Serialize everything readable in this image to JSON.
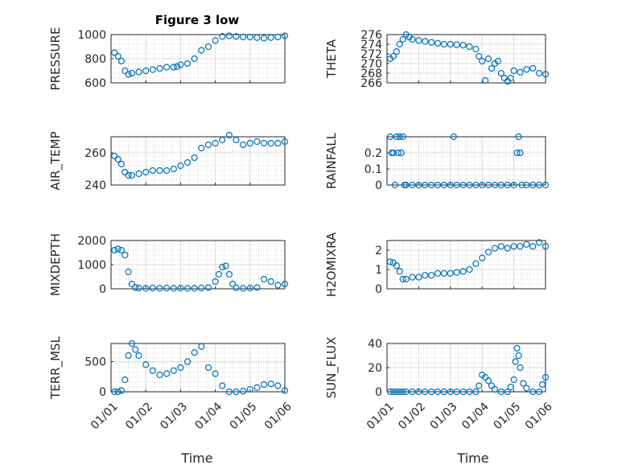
{
  "figure": {
    "title": "Figure 3 low",
    "xlabel": "Time"
  },
  "colors": {
    "marker": "#0072bd",
    "axes": "#262626"
  },
  "chart_data": [
    {
      "type": "scatter",
      "ylabel": "PRESSURE",
      "xlim": [
        0,
        5
      ],
      "ylim": [
        600,
        1000
      ],
      "yticks": [
        600,
        800,
        1000
      ],
      "xticks": [
        0,
        1,
        2,
        3,
        4,
        5
      ],
      "xticklabels": [
        "01/01",
        "01/02",
        "01/03",
        "01/04",
        "01/05",
        "01/06"
      ],
      "grid": true,
      "minor_grid": true,
      "x": [
        0.1,
        0.2,
        0.3,
        0.4,
        0.5,
        0.6,
        0.8,
        1.0,
        1.2,
        1.4,
        1.6,
        1.8,
        1.9,
        2.0,
        2.2,
        2.4,
        2.6,
        2.8,
        3.0,
        3.2,
        3.4,
        3.6,
        3.8,
        4.0,
        4.2,
        4.4,
        4.6,
        4.8,
        5.0
      ],
      "y": [
        850,
        820,
        780,
        700,
        670,
        680,
        690,
        700,
        710,
        720,
        730,
        730,
        735,
        750,
        760,
        800,
        870,
        900,
        950,
        985,
        990,
        985,
        980,
        980,
        975,
        970,
        975,
        980,
        990
      ]
    },
    {
      "type": "scatter",
      "ylabel": "THETA",
      "xlim": [
        0,
        5
      ],
      "ylim": [
        266,
        276
      ],
      "yticks": [
        266,
        268,
        270,
        272,
        274,
        276
      ],
      "xticks": [
        0,
        1,
        2,
        3,
        4,
        5
      ],
      "xticklabels": [
        "01/01",
        "01/02",
        "01/03",
        "01/04",
        "01/05",
        "01/06"
      ],
      "grid": true,
      "minor_grid": true,
      "x": [
        0.1,
        0.2,
        0.3,
        0.4,
        0.5,
        0.6,
        0.7,
        0.8,
        1.0,
        1.2,
        1.4,
        1.6,
        1.8,
        2.0,
        2.2,
        2.4,
        2.6,
        2.8,
        2.9,
        3.0,
        3.1,
        3.2,
        3.3,
        3.4,
        3.5,
        3.6,
        3.7,
        3.8,
        3.9,
        4.0,
        4.2,
        4.4,
        4.6,
        4.8,
        5.0
      ],
      "y": [
        271,
        271.5,
        272.5,
        274,
        275,
        276,
        275.5,
        275,
        274.8,
        274.6,
        274.4,
        274.2,
        274,
        274,
        273.9,
        273.8,
        273.5,
        273,
        271.5,
        270.5,
        266.5,
        271,
        269,
        270,
        270.5,
        268,
        267,
        266.3,
        267,
        268.5,
        268.2,
        268.8,
        269,
        268,
        267.8
      ]
    },
    {
      "type": "scatter",
      "ylabel": "AIR_TEMP",
      "xlim": [
        0,
        5
      ],
      "ylim": [
        240,
        270
      ],
      "yticks": [
        240,
        260
      ],
      "xticks": [
        0,
        1,
        2,
        3,
        4,
        5
      ],
      "xticklabels": [
        "01/01",
        "01/02",
        "01/03",
        "01/04",
        "01/05",
        "01/06"
      ],
      "grid": true,
      "minor_grid": true,
      "x": [
        0.1,
        0.2,
        0.3,
        0.4,
        0.5,
        0.6,
        0.8,
        1.0,
        1.2,
        1.4,
        1.6,
        1.8,
        2.0,
        2.2,
        2.4,
        2.6,
        2.8,
        3.0,
        3.2,
        3.4,
        3.6,
        3.8,
        4.0,
        4.2,
        4.4,
        4.6,
        4.8,
        5.0
      ],
      "y": [
        258,
        256,
        253,
        248,
        246,
        246,
        247,
        248,
        249,
        249,
        249,
        250,
        252,
        254,
        257,
        263,
        265,
        266,
        268,
        271,
        268,
        265,
        266,
        267,
        266,
        266,
        266,
        267
      ]
    },
    {
      "type": "scatter",
      "ylabel": "RAINFALL",
      "xlim": [
        0,
        5
      ],
      "ylim": [
        0,
        0.3
      ],
      "yticks": [
        0,
        0.1,
        0.2
      ],
      "xticks": [
        0,
        1,
        2,
        3,
        4,
        5
      ],
      "xticklabels": [
        "01/01",
        "01/02",
        "01/03",
        "01/04",
        "01/05",
        "01/06"
      ],
      "grid": true,
      "minor_grid": true,
      "x": [
        0.1,
        0.15,
        0.2,
        0.25,
        0.3,
        0.35,
        0.4,
        0.45,
        0.5,
        0.55,
        0.6,
        0.8,
        1.0,
        1.2,
        1.4,
        1.6,
        1.8,
        2.0,
        2.1,
        2.2,
        2.4,
        2.6,
        2.8,
        3.0,
        3.2,
        3.4,
        3.6,
        3.8,
        4.0,
        4.1,
        4.15,
        4.2,
        4.25,
        4.4,
        4.6,
        4.8,
        5.0
      ],
      "y": [
        0.3,
        0.2,
        0.2,
        0,
        0.3,
        0.2,
        0.3,
        0.2,
        0.3,
        0,
        0,
        0,
        0,
        0,
        0,
        0,
        0,
        0,
        0.3,
        0,
        0,
        0,
        0,
        0,
        0,
        0,
        0,
        0,
        0,
        0.2,
        0.3,
        0.2,
        0,
        0,
        0,
        0,
        0
      ]
    },
    {
      "type": "scatter",
      "ylabel": "MIXDEPTH",
      "xlim": [
        0,
        5
      ],
      "ylim": [
        0,
        2000
      ],
      "yticks": [
        0,
        1000,
        2000
      ],
      "xticks": [
        0,
        1,
        2,
        3,
        4,
        5
      ],
      "xticklabels": [
        "01/01",
        "01/02",
        "01/03",
        "01/04",
        "01/05",
        "01/06"
      ],
      "grid": true,
      "minor_grid": true,
      "x": [
        0.1,
        0.2,
        0.3,
        0.4,
        0.5,
        0.6,
        0.7,
        0.8,
        1.0,
        1.2,
        1.4,
        1.6,
        1.8,
        2.0,
        2.2,
        2.4,
        2.6,
        2.8,
        3.0,
        3.1,
        3.2,
        3.3,
        3.4,
        3.5,
        3.6,
        3.8,
        4.0,
        4.2,
        4.4,
        4.6,
        4.8,
        5.0
      ],
      "y": [
        1600,
        1650,
        1600,
        1400,
        700,
        200,
        50,
        30,
        20,
        30,
        20,
        30,
        20,
        30,
        20,
        20,
        30,
        50,
        300,
        600,
        900,
        950,
        600,
        200,
        40,
        20,
        30,
        50,
        400,
        300,
        150,
        200
      ]
    },
    {
      "type": "scatter",
      "ylabel": "H2OMIXRA",
      "xlim": [
        0,
        5
      ],
      "ylim": [
        0,
        2.5
      ],
      "yticks": [
        0,
        1,
        2
      ],
      "xticks": [
        0,
        1,
        2,
        3,
        4,
        5
      ],
      "xticklabels": [
        "01/01",
        "01/02",
        "01/03",
        "01/04",
        "01/05",
        "01/06"
      ],
      "grid": true,
      "minor_grid": true,
      "x": [
        0.1,
        0.2,
        0.3,
        0.4,
        0.5,
        0.6,
        0.8,
        1.0,
        1.2,
        1.4,
        1.6,
        1.8,
        2.0,
        2.2,
        2.4,
        2.6,
        2.8,
        3.0,
        3.2,
        3.4,
        3.6,
        3.8,
        4.0,
        4.2,
        4.4,
        4.6,
        4.8,
        5.0
      ],
      "y": [
        1.4,
        1.35,
        1.2,
        0.9,
        0.5,
        0.5,
        0.6,
        0.6,
        0.7,
        0.7,
        0.8,
        0.8,
        0.8,
        0.85,
        0.9,
        1.0,
        1.3,
        1.6,
        1.9,
        2.1,
        2.2,
        2.1,
        2.2,
        2.2,
        2.3,
        2.2,
        2.4,
        2.2
      ]
    },
    {
      "type": "scatter",
      "ylabel": "TERR_MSL",
      "xlim": [
        0,
        5
      ],
      "ylim": [
        0,
        800
      ],
      "yticks": [
        0,
        500
      ],
      "xticks": [
        0,
        1,
        2,
        3,
        4,
        5
      ],
      "xticklabels": [
        "01/01",
        "01/02",
        "01/03",
        "01/04",
        "01/05",
        "01/06"
      ],
      "grid": true,
      "minor_grid": true,
      "x": [
        0.1,
        0.2,
        0.3,
        0.4,
        0.5,
        0.6,
        0.7,
        0.8,
        1.0,
        1.2,
        1.4,
        1.6,
        1.8,
        2.0,
        2.2,
        2.4,
        2.6,
        2.8,
        3.0,
        3.2,
        3.4,
        3.6,
        3.8,
        4.0,
        4.2,
        4.4,
        4.6,
        4.8,
        5.0
      ],
      "y": [
        0,
        0,
        20,
        200,
        600,
        800,
        700,
        600,
        450,
        350,
        280,
        300,
        350,
        400,
        500,
        650,
        750,
        400,
        300,
        100,
        0,
        0,
        10,
        40,
        70,
        120,
        130,
        100,
        20
      ]
    },
    {
      "type": "scatter",
      "ylabel": "SUN_FLUX",
      "xlim": [
        0,
        5
      ],
      "ylim": [
        0,
        40
      ],
      "yticks": [
        0,
        20,
        40
      ],
      "xticks": [
        0,
        1,
        2,
        3,
        4,
        5
      ],
      "xticklabels": [
        "01/01",
        "01/02",
        "01/03",
        "01/04",
        "01/05",
        "01/06"
      ],
      "grid": true,
      "minor_grid": true,
      "x": [
        0.1,
        0.2,
        0.3,
        0.4,
        0.5,
        0.6,
        0.8,
        1.0,
        1.2,
        1.4,
        1.6,
        1.8,
        2.0,
        2.2,
        2.4,
        2.6,
        2.8,
        2.9,
        3.0,
        3.1,
        3.2,
        3.3,
        3.4,
        3.6,
        3.8,
        3.9,
        4.0,
        4.05,
        4.1,
        4.15,
        4.2,
        4.3,
        4.4,
        4.6,
        4.8,
        4.9,
        5.0
      ],
      "y": [
        0,
        0,
        0,
        0,
        0,
        0,
        0,
        0,
        0,
        0,
        0,
        0,
        0,
        0,
        0,
        0,
        0,
        5,
        14,
        12,
        9,
        5,
        2,
        0,
        0,
        4,
        10,
        25,
        36,
        30,
        20,
        7,
        3,
        0,
        0,
        6,
        12
      ]
    }
  ]
}
